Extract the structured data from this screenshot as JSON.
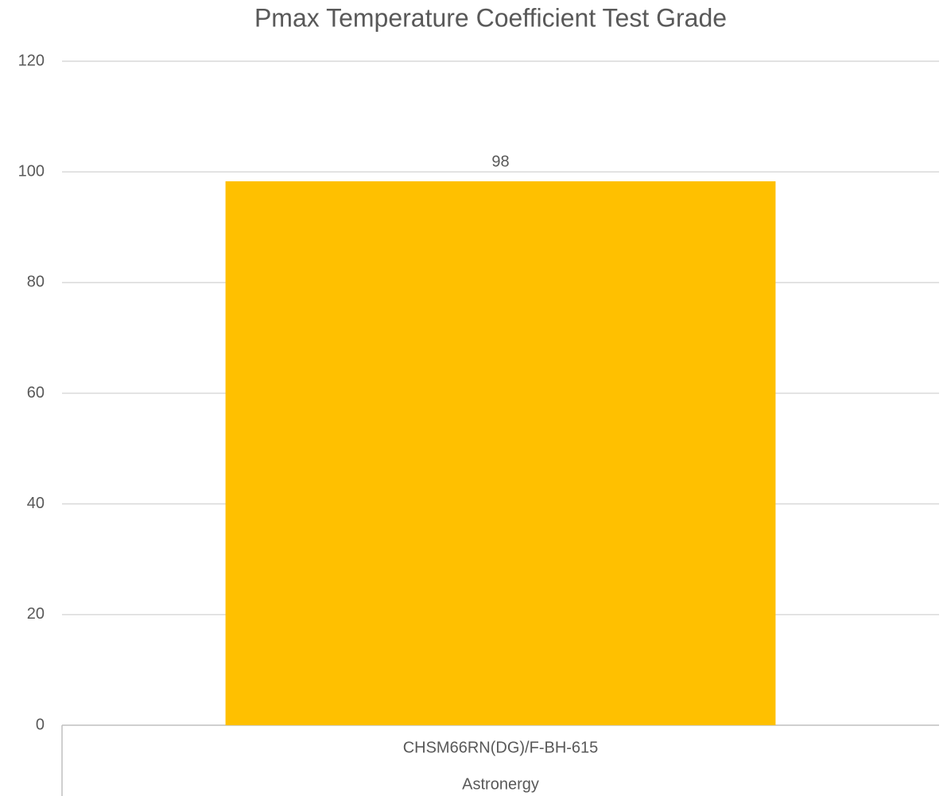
{
  "chart_data": {
    "type": "bar",
    "title": "Pmax Temperature Coefficient Test Grade",
    "categories": [
      "CHSM66RN(DG)/F-BH-615"
    ],
    "groups": [
      "Astronergy"
    ],
    "values": [
      98.3
    ],
    "value_labels": [
      "98"
    ],
    "color": "#ffc000",
    "ylim": [
      0,
      120
    ],
    "yticks": [
      0,
      20,
      40,
      60,
      80,
      100,
      120
    ],
    "grid": true
  }
}
